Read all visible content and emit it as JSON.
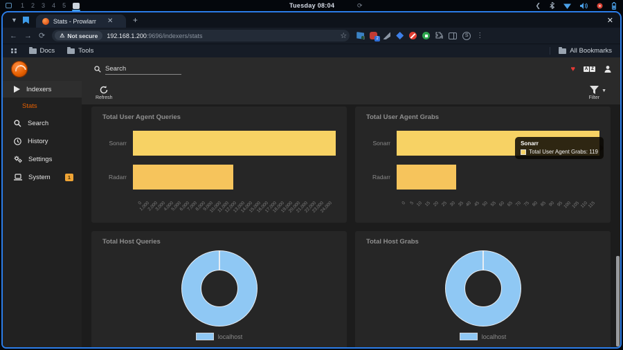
{
  "taskbar": {
    "workspaces": [
      "1",
      "2",
      "3",
      "4",
      "5"
    ],
    "clock": "Tuesday 08:04"
  },
  "browser": {
    "tab": {
      "title": "Stats - Prowlarr"
    },
    "address": {
      "security_label": "Not secure",
      "host": "192.168.1.200",
      "path": ":9696/indexers/stats"
    },
    "extension_badges": {
      "first": "1",
      "second": "2"
    },
    "profile_initial": "S",
    "bookmarks_bar": {
      "folders": [
        "Docs",
        "Tools"
      ],
      "all_bookmarks_label": "All Bookmarks"
    }
  },
  "app": {
    "accent_color": "#e66000",
    "header": {
      "search_placeholder": "Search"
    },
    "sidebar": {
      "items": [
        {
          "label": "Indexers"
        },
        {
          "label": "Stats"
        },
        {
          "label": "Search"
        },
        {
          "label": "History"
        },
        {
          "label": "Settings"
        },
        {
          "label": "System",
          "badge": "1"
        }
      ]
    },
    "toolbar": {
      "refresh": "Refresh",
      "filter": "Filter"
    }
  },
  "chart_data": [
    {
      "type": "bar",
      "orientation": "horizontal",
      "title": "Total User Agent Queries",
      "categories": [
        "Sonarr",
        "Radarr"
      ],
      "values": [
        24800,
        12300
      ],
      "xlim": [
        0,
        24800
      ],
      "xticks": [
        "0",
        "1,000",
        "2,000",
        "3,000",
        "4,000",
        "5,000",
        "6,000",
        "7,000",
        "8,000",
        "9,000",
        "10,000",
        "11,000",
        "12,000",
        "13,000",
        "14,000",
        "15,000",
        "16,000",
        "17,000",
        "18,000",
        "19,000",
        "20,000",
        "21,000",
        "22,000",
        "23,000",
        "24,000"
      ],
      "bar_colors": [
        "#f7d264",
        "#f6c45c"
      ],
      "grid": false,
      "legend": false
    },
    {
      "type": "bar",
      "orientation": "horizontal",
      "title": "Total User Agent Grabs",
      "categories": [
        "Sonarr",
        "Radarr"
      ],
      "values": [
        119,
        35
      ],
      "xlim": [
        0,
        119
      ],
      "xticks": [
        "0",
        "5",
        "10",
        "15",
        "20",
        "25",
        "30",
        "35",
        "40",
        "45",
        "50",
        "55",
        "60",
        "65",
        "70",
        "75",
        "80",
        "85",
        "90",
        "95",
        "100",
        "105",
        "110",
        "115"
      ],
      "bar_colors": [
        "#f7d264",
        "#f6c45c"
      ],
      "tooltip": {
        "title": "Sonarr",
        "label": "Total User Agent Grabs: 119",
        "swatch_color": "#f7d264"
      },
      "grid": false,
      "legend": false
    },
    {
      "type": "donut",
      "title": "Total Host Queries",
      "labels": [
        "localhost"
      ],
      "values": [
        100
      ],
      "color": "#8fc8f4",
      "legend_position": "bottom"
    },
    {
      "type": "donut",
      "title": "Total Host Grabs",
      "labels": [
        "localhost"
      ],
      "values": [
        100
      ],
      "color": "#8fc8f4",
      "legend_position": "bottom"
    }
  ]
}
